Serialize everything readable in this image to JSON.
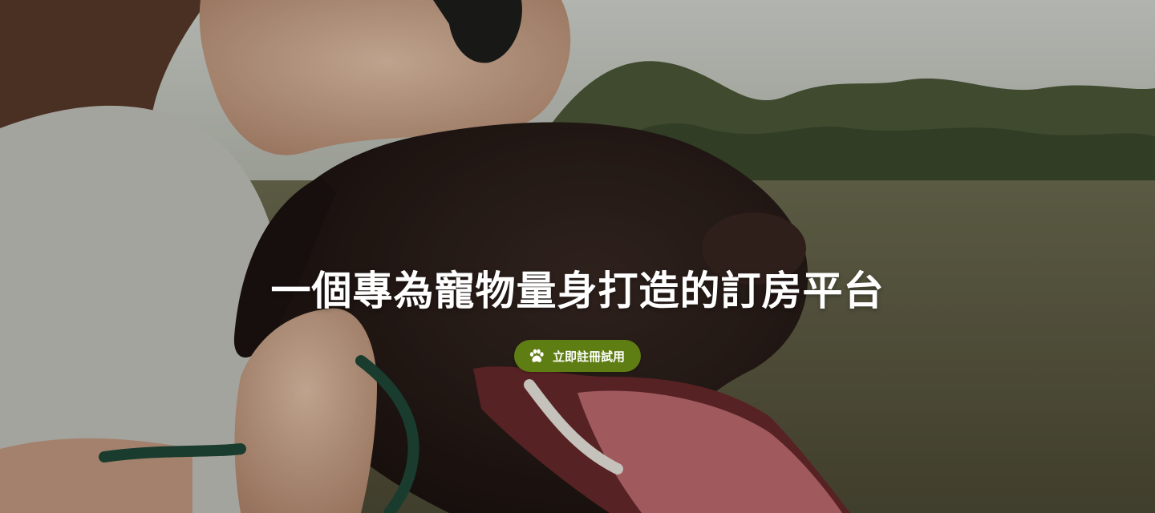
{
  "hero": {
    "title": "一個專為寵物量身打造的訂房平台",
    "cta": {
      "label": "立即註冊試用",
      "icon": "paw-icon"
    },
    "image": {
      "subject": "dog-and-owner-photo"
    }
  },
  "colors": {
    "cta_background": "#5e7d12",
    "title_text": "#ffffff"
  }
}
